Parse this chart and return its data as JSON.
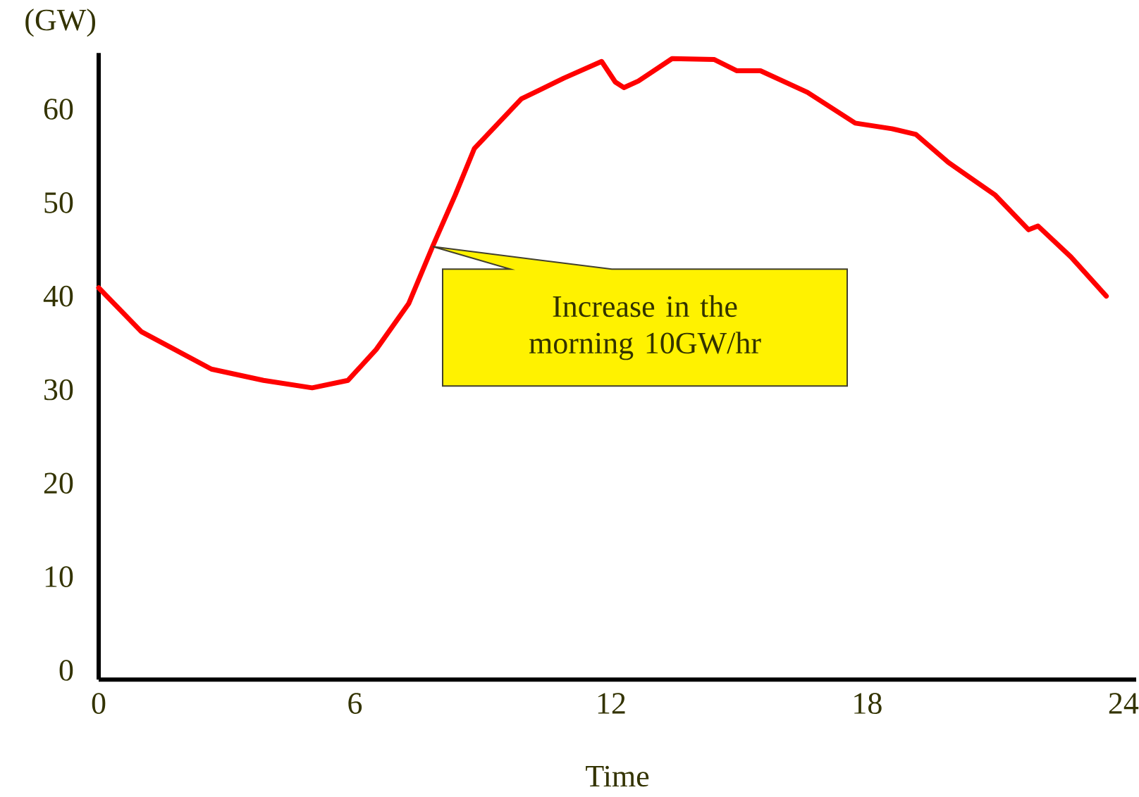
{
  "chart_data": {
    "type": "line",
    "xlabel": "Time",
    "ylabel": "(GW)",
    "x": [
      0,
      1,
      2.64,
      3.86,
      5.0,
      5.84,
      6.5,
      7.26,
      7.82,
      8.35,
      8.8,
      9.9,
      10.89,
      11.78,
      12.1,
      12.3,
      12.64,
      13.43,
      14.42,
      14.95,
      15.5,
      16.6,
      17.72,
      18.58,
      19.14,
      19.9,
      21.0,
      21.78,
      22.0,
      22.77,
      23.6
    ],
    "values": [
      40.9,
      36.2,
      32.2,
      31.0,
      30.2,
      31.0,
      34.3,
      39.2,
      45.3,
      50.8,
      55.8,
      61.1,
      63.3,
      65.1,
      62.9,
      62.3,
      63.0,
      65.4,
      65.3,
      64.1,
      64.1,
      61.8,
      58.5,
      57.9,
      57.3,
      54.3,
      50.8,
      47.1,
      47.5,
      44.2,
      40.0
    ],
    "color": "#ff0000",
    "marker": "none",
    "line_style": "solid",
    "xlim": [
      0,
      24.3
    ],
    "ylim": [
      -1,
      66
    ],
    "xticks": [
      0,
      6,
      12,
      18,
      24
    ],
    "yticks": [
      0,
      10,
      20,
      30,
      40,
      50,
      60
    ],
    "annotations": [
      "Increase in the morning 10GW/hr"
    ]
  }
}
